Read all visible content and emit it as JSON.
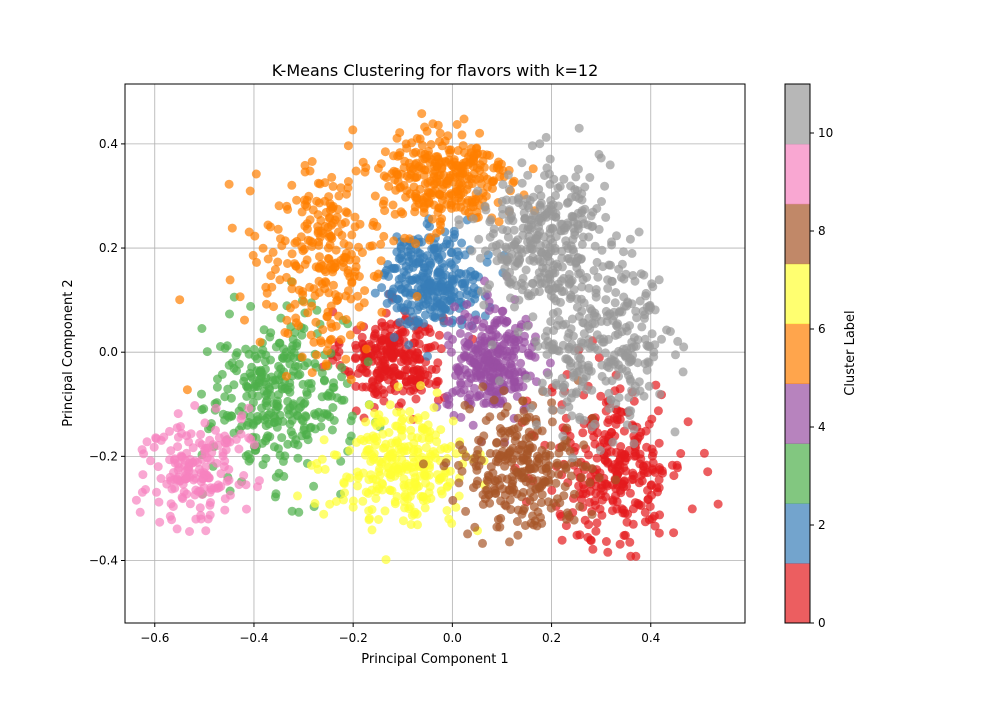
{
  "chart_data": {
    "type": "scatter",
    "title": "K-Means Clustering for flavors with k=12",
    "xlabel": "Principal Component 1",
    "ylabel": "Principal Component 2",
    "xlim": [
      -0.66,
      0.59
    ],
    "ylim": [
      -0.52,
      0.515
    ],
    "xticks": [
      -0.6,
      -0.4,
      -0.2,
      0.0,
      0.2,
      0.4
    ],
    "xtick_labels": [
      "−0.6",
      "−0.4",
      "−0.2",
      "0.0",
      "0.2",
      "0.4"
    ],
    "yticks": [
      -0.4,
      -0.2,
      0.0,
      0.2,
      0.4
    ],
    "ytick_labels": [
      "−0.4",
      "−0.2",
      "0.0",
      "0.2",
      "0.4"
    ],
    "grid": true,
    "marker_alpha": 0.7,
    "clusters": [
      {
        "label": 0,
        "color": "#e41a1c",
        "center": [
          -0.12,
          -0.01
        ],
        "spread": [
          0.05,
          0.045
        ],
        "count": 260
      },
      {
        "label": 1,
        "color": "#e41a1c",
        "center": [
          0.33,
          -0.22
        ],
        "spread": [
          0.07,
          0.08
        ],
        "count": 300
      },
      {
        "label": 2,
        "color": "#377eb8",
        "center": [
          -0.04,
          0.14
        ],
        "spread": [
          0.05,
          0.045
        ],
        "count": 280
      },
      {
        "label": 3,
        "color": "#4daf4a",
        "center": [
          -0.35,
          -0.09
        ],
        "spread": [
          0.07,
          0.08
        ],
        "count": 320
      },
      {
        "label": 4,
        "color": "#984ea3",
        "center": [
          0.08,
          -0.02
        ],
        "spread": [
          0.045,
          0.05
        ],
        "count": 280
      },
      {
        "label": 5,
        "color": "#ff7f00",
        "center": [
          -0.26,
          0.18
        ],
        "spread": [
          0.07,
          0.09
        ],
        "count": 260
      },
      {
        "label": 6,
        "color": "#ff7f00",
        "center": [
          -0.02,
          0.33
        ],
        "spread": [
          0.07,
          0.05
        ],
        "count": 300
      },
      {
        "label": 7,
        "color": "#ffff33",
        "center": [
          -0.1,
          -0.22
        ],
        "spread": [
          0.07,
          0.055
        ],
        "count": 280
      },
      {
        "label": 8,
        "color": "#a65628",
        "center": [
          0.14,
          -0.22
        ],
        "spread": [
          0.06,
          0.06
        ],
        "count": 270
      },
      {
        "label": 9,
        "color": "#f781bf",
        "center": [
          -0.52,
          -0.22
        ],
        "spread": [
          0.05,
          0.055
        ],
        "count": 180
      },
      {
        "label": 10,
        "color": "#999999",
        "center": [
          0.18,
          0.22
        ],
        "spread": [
          0.06,
          0.07
        ],
        "count": 320
      },
      {
        "label": 11,
        "color": "#999999",
        "center": [
          0.3,
          0.02
        ],
        "spread": [
          0.07,
          0.08
        ],
        "count": 300
      }
    ],
    "colorbar": {
      "label": "Cluster Label",
      "range": [
        0,
        11
      ],
      "ticks": [
        0,
        2,
        4,
        6,
        8,
        10
      ],
      "tick_labels": [
        "0",
        "2",
        "4",
        "6",
        "8",
        "10"
      ],
      "bands": [
        "#e41a1c",
        "#377eb8",
        "#4daf4a",
        "#984ea3",
        "#ff7f00",
        "#ffff33",
        "#a65628",
        "#f781bf",
        "#999999"
      ],
      "alpha": 0.7
    }
  }
}
